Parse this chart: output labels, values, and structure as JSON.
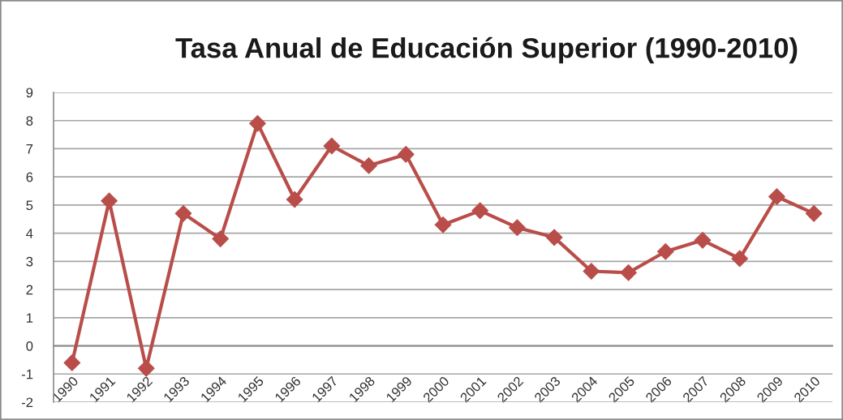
{
  "chart_data": {
    "type": "line",
    "title": "Tasa Anual de Educación Superior (1990-2010)",
    "categories": [
      "1990",
      "1991",
      "1992",
      "1993",
      "1994",
      "1995",
      "1996",
      "1997",
      "1998",
      "1999",
      "2000",
      "2001",
      "2002",
      "2003",
      "2004",
      "2005",
      "2006",
      "2007",
      "2008",
      "2009",
      "2010"
    ],
    "series": [
      {
        "color": "#b94d49",
        "values": [
          -0.6,
          5.15,
          -0.8,
          4.7,
          3.8,
          7.9,
          5.2,
          7.1,
          6.4,
          6.8,
          4.3,
          4.8,
          4.2,
          3.85,
          2.65,
          2.6,
          3.35,
          3.75,
          3.1,
          5.3,
          4.7
        ]
      }
    ],
    "ylim": [
      -2,
      9
    ],
    "yticks": [
      -2,
      -1,
      0,
      1,
      2,
      3,
      4,
      5,
      6,
      7,
      8,
      9
    ],
    "grid": "y",
    "marker": "diamond",
    "line_style": "solid"
  }
}
